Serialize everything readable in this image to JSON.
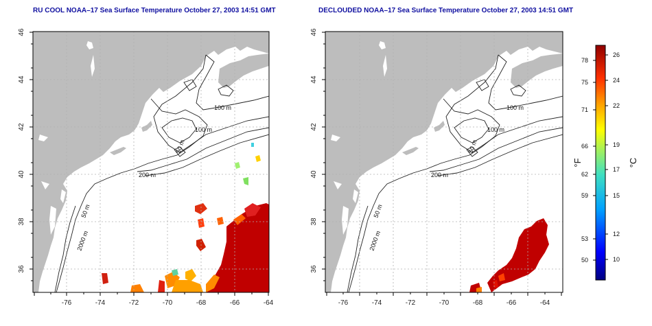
{
  "panels": [
    {
      "title": "RU COOL NOAA–17 Sea Surface Temperature October 27, 2003 14:51 GMT",
      "contour_labels": [
        "100 m",
        "100 m",
        "50 m",
        "200 m",
        "50 m",
        "2000 m"
      ]
    },
    {
      "title": "DECLOUDED NOAA–17 Sea Surface Temperature October 27, 2003 14:51 GMT",
      "contour_labels": [
        "100 m",
        "100 m",
        "50 m",
        "200 m",
        "50 m",
        "2000 m"
      ]
    }
  ],
  "axes": {
    "x_ticks": [
      "-76",
      "-74",
      "-72",
      "-70",
      "-68",
      "-66",
      "-64"
    ],
    "y_ticks": [
      "36",
      "38",
      "40",
      "42",
      "44",
      "46"
    ],
    "x_range": [
      -77,
      -63
    ],
    "y_range": [
      35,
      46
    ]
  },
  "colorbar": {
    "fahrenheit_ticks": [
      "78",
      "75",
      "71",
      "66",
      "62",
      "59",
      "53",
      "50"
    ],
    "celsius_ticks": [
      "26",
      "24",
      "22",
      "19",
      "17",
      "15",
      "12",
      "10"
    ],
    "fahrenheit_unit": "°F",
    "celsius_unit": "°C",
    "range_celsius": [
      8,
      27
    ]
  },
  "colors": {
    "land": "#bdbdbd",
    "sea": "#ffffff",
    "grid": "#b0b0b0",
    "title": "#1010a0"
  }
}
